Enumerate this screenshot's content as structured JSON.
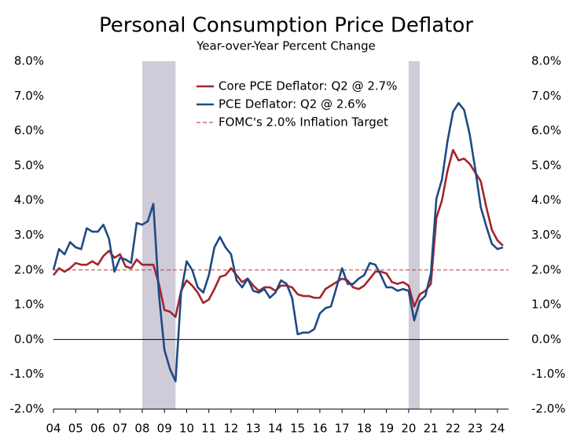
{
  "chart_data": {
    "type": "line",
    "title": "Personal Consumption Price Deflator",
    "subtitle": "Year-over-Year Percent Change",
    "x": [
      2004,
      2004.25,
      2004.5,
      2004.75,
      2005,
      2005.25,
      2005.5,
      2005.75,
      2006,
      2006.25,
      2006.5,
      2006.75,
      2007,
      2007.25,
      2007.5,
      2007.75,
      2008,
      2008.25,
      2008.5,
      2008.75,
      2009,
      2009.25,
      2009.5,
      2009.75,
      2010,
      2010.25,
      2010.5,
      2010.75,
      2011,
      2011.25,
      2011.5,
      2011.75,
      2012,
      2012.25,
      2012.5,
      2012.75,
      2013,
      2013.25,
      2013.5,
      2013.75,
      2014,
      2014.25,
      2014.5,
      2014.75,
      2015,
      2015.25,
      2015.5,
      2015.75,
      2016,
      2016.25,
      2016.5,
      2016.75,
      2017,
      2017.25,
      2017.5,
      2017.75,
      2018,
      2018.25,
      2018.5,
      2018.75,
      2019,
      2019.25,
      2019.5,
      2019.75,
      2020,
      2020.25,
      2020.5,
      2020.75,
      2021,
      2021.25,
      2021.5,
      2021.75,
      2022,
      2022.25,
      2022.5,
      2022.75,
      2023,
      2023.25,
      2023.5,
      2023.75,
      2024,
      2024.25
    ],
    "series": [
      {
        "name": "Core PCE Deflator: Q2 @ 2.7%",
        "color": "#a3252b",
        "values": [
          1.85,
          2.05,
          1.95,
          2.05,
          2.2,
          2.15,
          2.15,
          2.25,
          2.15,
          2.4,
          2.55,
          2.35,
          2.45,
          2.1,
          2.05,
          2.3,
          2.15,
          2.15,
          2.15,
          1.6,
          0.85,
          0.8,
          0.65,
          1.4,
          1.7,
          1.55,
          1.35,
          1.05,
          1.15,
          1.45,
          1.8,
          1.85,
          2.05,
          1.85,
          1.65,
          1.75,
          1.55,
          1.4,
          1.5,
          1.5,
          1.4,
          1.55,
          1.55,
          1.5,
          1.3,
          1.25,
          1.25,
          1.2,
          1.2,
          1.45,
          1.55,
          1.65,
          1.75,
          1.7,
          1.5,
          1.45,
          1.55,
          1.75,
          1.95,
          1.95,
          1.9,
          1.65,
          1.6,
          1.65,
          1.55,
          0.95,
          1.3,
          1.4,
          1.6,
          3.5,
          4.0,
          4.85,
          5.45,
          5.15,
          5.2,
          5.05,
          4.8,
          4.55,
          3.8,
          3.15,
          2.85,
          2.7
        ]
      },
      {
        "name": "PCE Deflator: Q2 @ 2.6%",
        "color": "#1f4a84",
        "values": [
          2.0,
          2.6,
          2.45,
          2.8,
          2.65,
          2.6,
          3.2,
          3.1,
          3.1,
          3.3,
          2.9,
          1.95,
          2.35,
          2.3,
          2.2,
          3.35,
          3.3,
          3.4,
          3.9,
          1.3,
          -0.3,
          -0.85,
          -1.2,
          1.35,
          2.25,
          2.0,
          1.5,
          1.35,
          1.85,
          2.65,
          2.95,
          2.65,
          2.45,
          1.7,
          1.5,
          1.75,
          1.4,
          1.35,
          1.45,
          1.2,
          1.35,
          1.7,
          1.6,
          1.2,
          0.15,
          0.2,
          0.2,
          0.3,
          0.75,
          0.9,
          0.95,
          1.5,
          2.05,
          1.6,
          1.6,
          1.75,
          1.85,
          2.2,
          2.15,
          1.85,
          1.5,
          1.5,
          1.4,
          1.45,
          1.4,
          0.55,
          1.1,
          1.25,
          1.9,
          4.05,
          4.6,
          5.7,
          6.55,
          6.8,
          6.6,
          5.9,
          4.9,
          3.8,
          3.25,
          2.75,
          2.6,
          2.65
        ]
      }
    ],
    "target": {
      "name": "FOMC's 2.0% Inflation Target",
      "value": 2.0,
      "color": "#c0504d"
    },
    "shaded": [
      [
        2008,
        2009.5
      ],
      [
        2020,
        2020.5
      ]
    ],
    "shade_color": "#cfcbd8",
    "xlim": [
      2004,
      2024.5
    ],
    "xticks": [
      {
        "value": 2004,
        "label": "04"
      },
      {
        "value": 2005,
        "label": "05"
      },
      {
        "value": 2006,
        "label": "06"
      },
      {
        "value": 2007,
        "label": "07"
      },
      {
        "value": 2008,
        "label": "08"
      },
      {
        "value": 2009,
        "label": "09"
      },
      {
        "value": 2010,
        "label": "10"
      },
      {
        "value": 2011,
        "label": "11"
      },
      {
        "value": 2012,
        "label": "12"
      },
      {
        "value": 2013,
        "label": "13"
      },
      {
        "value": 2014,
        "label": "14"
      },
      {
        "value": 2015,
        "label": "15"
      },
      {
        "value": 2016,
        "label": "16"
      },
      {
        "value": 2017,
        "label": "17"
      },
      {
        "value": 2018,
        "label": "18"
      },
      {
        "value": 2019,
        "label": "19"
      },
      {
        "value": 2020,
        "label": "20"
      },
      {
        "value": 2021,
        "label": "21"
      },
      {
        "value": 2022,
        "label": "22"
      },
      {
        "value": 2023,
        "label": "23"
      },
      {
        "value": 2024,
        "label": "24"
      }
    ],
    "ylim": [
      -2,
      8
    ],
    "yticks": [
      {
        "value": -2,
        "label": "-2.0%"
      },
      {
        "value": -1,
        "label": "-1.0%"
      },
      {
        "value": 0,
        "label": "0.0%"
      },
      {
        "value": 1,
        "label": "1.0%"
      },
      {
        "value": 2,
        "label": "2.0%"
      },
      {
        "value": 3,
        "label": "3.0%"
      },
      {
        "value": 4,
        "label": "4.0%"
      },
      {
        "value": 5,
        "label": "5.0%"
      },
      {
        "value": 6,
        "label": "6.0%"
      },
      {
        "value": 7,
        "label": "7.0%"
      },
      {
        "value": 8,
        "label": "8.0%"
      }
    ],
    "y2lim": [
      -2,
      8
    ],
    "y2ticks": [
      {
        "value": -2,
        "label": "-2.0%"
      },
      {
        "value": -1,
        "label": "-1.0%"
      },
      {
        "value": 0,
        "label": "0.0%"
      },
      {
        "value": 1,
        "label": "1.0%"
      },
      {
        "value": 2,
        "label": "2.0%"
      },
      {
        "value": 3,
        "label": "3.0%"
      },
      {
        "value": 4,
        "label": "4.0%"
      },
      {
        "value": 5,
        "label": "5.0%"
      },
      {
        "value": 6,
        "label": "6.0%"
      },
      {
        "value": 7,
        "label": "7.0%"
      },
      {
        "value": 8,
        "label": "8.0%"
      }
    ]
  }
}
